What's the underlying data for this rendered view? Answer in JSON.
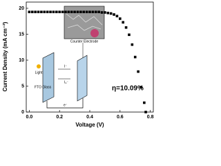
{
  "chart_data": {
    "type": "scatter",
    "xlabel": "Voltage (V)",
    "ylabel": "Current Density (mA cm⁻²)",
    "annotation": "η=10.09%",
    "inset_labels": [
      "Counter Electrode",
      "Light",
      "FTO Glass",
      "I⁻",
      "I₃⁻",
      "e⁻"
    ],
    "x": [
      0,
      0.02,
      0.04,
      0.06,
      0.08,
      0.1,
      0.12,
      0.14,
      0.16,
      0.18,
      0.2,
      0.22,
      0.24,
      0.26,
      0.28,
      0.3,
      0.32,
      0.34,
      0.36,
      0.38,
      0.4,
      0.42,
      0.44,
      0.46,
      0.48,
      0.5,
      0.52,
      0.54,
      0.56,
      0.58,
      0.6,
      0.62,
      0.64,
      0.66,
      0.68,
      0.7,
      0.72,
      0.74,
      0.76,
      0.77
    ],
    "series": [
      {
        "color": "#000000",
        "values": [
          19.3,
          19.3,
          19.3,
          19.3,
          19.3,
          19.3,
          19.3,
          19.3,
          19.3,
          19.3,
          19.3,
          19.3,
          19.3,
          19.3,
          19.3,
          19.3,
          19.3,
          19.3,
          19.3,
          19.3,
          19.3,
          19.3,
          19.3,
          19.3,
          19.2,
          19.2,
          19.1,
          19.0,
          18.8,
          18.5,
          18.0,
          17.3,
          16.3,
          14.9,
          13.0,
          10.6,
          7.8,
          4.8,
          1.8,
          0
        ]
      }
    ],
    "xlim": [
      -0.02,
      0.82
    ],
    "ylim": [
      0,
      21.2
    ],
    "xticks": [
      {
        "value": 0,
        "label": "0.0"
      },
      0.2,
      0.4,
      0.6,
      0.8
    ],
    "yticks": [
      0,
      5,
      10,
      15,
      20
    ]
  }
}
